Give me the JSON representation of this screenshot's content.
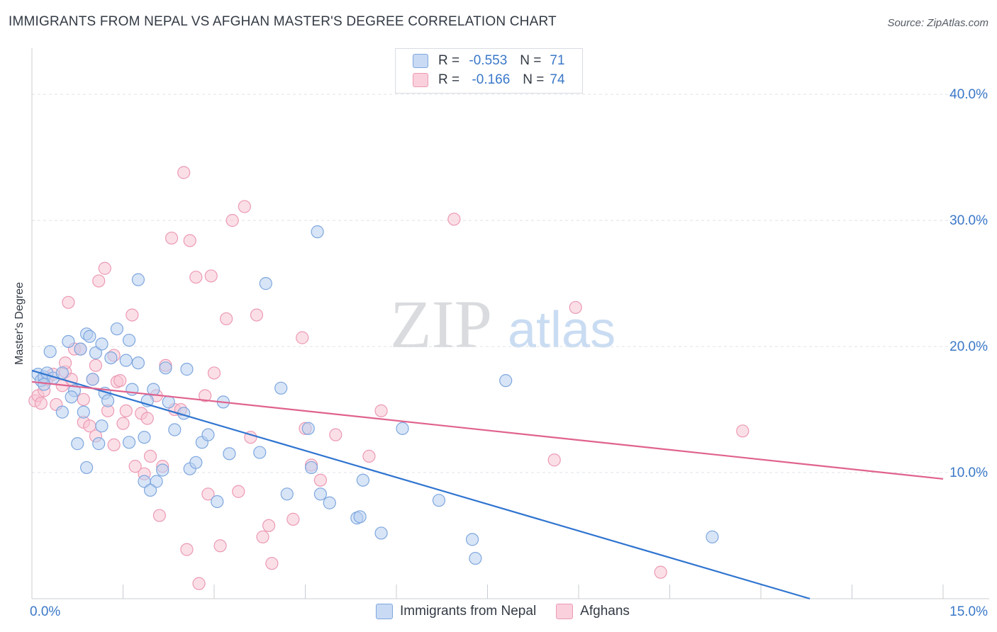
{
  "title": "IMMIGRANTS FROM NEPAL VS AFGHAN MASTER'S DEGREE CORRELATION CHART",
  "source": "Source: ZipAtlas.com",
  "watermark": {
    "zip": "ZIP",
    "atlas": "atlas"
  },
  "colors": {
    "nepal_fill": "#b8d0f0",
    "nepal_stroke": "#7ea7de",
    "nepal_line": "#2f74d0",
    "afghan_fill": "#f8c4d4",
    "afghan_stroke": "#ec9ab4",
    "afghan_line": "#e0628e",
    "tick_label": "#3a78c8",
    "grid": "#dfe3e8"
  },
  "legend_top": {
    "rows": [
      {
        "r_label": "R =",
        "r_value": "-0.553",
        "n_label": "N =",
        "n_value": "71"
      },
      {
        "r_label": "R =",
        "r_value": "-0.166",
        "n_label": "N =",
        "n_value": "74"
      }
    ]
  },
  "chart_data": {
    "type": "scatter",
    "title": "IMMIGRANTS FROM NEPAL VS AFGHAN MASTER'S DEGREE CORRELATION CHART",
    "xlabel": "",
    "ylabel": "Master's Degree",
    "xlim": [
      0,
      15
    ],
    "ylim": [
      0,
      40
    ],
    "x_tick_labels": [
      "0.0%",
      "15.0%"
    ],
    "y_ticks": [
      10,
      20,
      30,
      40
    ],
    "y_tick_labels": [
      "10.0%",
      "20.0%",
      "30.0%",
      "40.0%"
    ],
    "grid": true,
    "legend_position": "bottom",
    "series": [
      {
        "name": "Immigrants from Nepal",
        "trend": [
          [
            0,
            18.1
          ],
          [
            15,
            -3.1
          ]
        ],
        "points": [
          [
            0.1,
            17.8
          ],
          [
            0.15,
            17.3
          ],
          [
            0.2,
            17.6
          ],
          [
            0.25,
            17.9
          ],
          [
            0.35,
            17.5
          ],
          [
            0.5,
            17.9
          ],
          [
            0.3,
            19.6
          ],
          [
            0.6,
            20.4
          ],
          [
            0.7,
            16.5
          ],
          [
            0.65,
            16.0
          ],
          [
            0.8,
            19.8
          ],
          [
            0.9,
            21.0
          ],
          [
            0.95,
            20.8
          ],
          [
            0.5,
            14.8
          ],
          [
            0.85,
            14.8
          ],
          [
            1.05,
            19.5
          ],
          [
            1.0,
            17.4
          ],
          [
            1.15,
            20.2
          ],
          [
            1.2,
            16.3
          ],
          [
            1.3,
            19.1
          ],
          [
            1.4,
            21.4
          ],
          [
            1.25,
            15.7
          ],
          [
            1.55,
            18.9
          ],
          [
            1.6,
            20.5
          ],
          [
            1.75,
            25.3
          ],
          [
            1.65,
            16.6
          ],
          [
            1.85,
            9.3
          ],
          [
            1.9,
            15.7
          ],
          [
            2.05,
            9.3
          ],
          [
            2.0,
            16.6
          ],
          [
            2.2,
            18.3
          ],
          [
            2.35,
            13.4
          ],
          [
            2.5,
            14.7
          ],
          [
            2.55,
            18.2
          ],
          [
            2.6,
            10.3
          ],
          [
            2.7,
            10.8
          ],
          [
            2.8,
            12.4
          ],
          [
            2.9,
            13.0
          ],
          [
            3.05,
            7.7
          ],
          [
            3.15,
            15.6
          ],
          [
            3.25,
            11.5
          ],
          [
            3.85,
            25.0
          ],
          [
            3.75,
            11.6
          ],
          [
            4.1,
            16.7
          ],
          [
            4.2,
            8.3
          ],
          [
            4.55,
            13.5
          ],
          [
            4.6,
            10.4
          ],
          [
            4.75,
            8.3
          ],
          [
            4.7,
            29.1
          ],
          [
            4.9,
            7.6
          ],
          [
            5.35,
            6.4
          ],
          [
            5.4,
            6.5
          ],
          [
            5.45,
            9.4
          ],
          [
            5.75,
            5.2
          ],
          [
            6.1,
            13.5
          ],
          [
            6.7,
            7.8
          ],
          [
            7.25,
            4.7
          ],
          [
            7.3,
            3.2
          ],
          [
            7.8,
            17.3
          ],
          [
            11.2,
            4.9
          ],
          [
            0.2,
            17.0
          ],
          [
            0.9,
            10.4
          ],
          [
            1.15,
            13.7
          ],
          [
            1.1,
            12.3
          ],
          [
            1.6,
            12.4
          ],
          [
            1.85,
            12.8
          ],
          [
            1.95,
            8.6
          ],
          [
            2.25,
            15.6
          ],
          [
            1.75,
            18.7
          ],
          [
            2.15,
            10.2
          ],
          [
            0.75,
            12.3
          ]
        ]
      },
      {
        "name": "Afghans",
        "trend": [
          [
            0,
            17.2
          ],
          [
            15,
            9.5
          ]
        ],
        "points": [
          [
            0.05,
            15.7
          ],
          [
            0.1,
            16.1
          ],
          [
            0.15,
            15.5
          ],
          [
            0.2,
            16.5
          ],
          [
            0.25,
            17.4
          ],
          [
            0.4,
            15.4
          ],
          [
            0.5,
            16.9
          ],
          [
            0.55,
            18.0
          ],
          [
            0.55,
            18.7
          ],
          [
            0.6,
            23.5
          ],
          [
            0.7,
            19.8
          ],
          [
            0.8,
            19.8
          ],
          [
            0.85,
            15.8
          ],
          [
            0.85,
            14.0
          ],
          [
            0.95,
            13.7
          ],
          [
            1.0,
            17.4
          ],
          [
            1.05,
            12.9
          ],
          [
            1.05,
            18.5
          ],
          [
            1.1,
            25.2
          ],
          [
            1.2,
            26.2
          ],
          [
            1.25,
            14.9
          ],
          [
            1.35,
            12.2
          ],
          [
            1.35,
            19.3
          ],
          [
            1.4,
            17.2
          ],
          [
            1.5,
            13.9
          ],
          [
            1.55,
            14.9
          ],
          [
            1.65,
            22.5
          ],
          [
            1.7,
            10.5
          ],
          [
            1.8,
            14.7
          ],
          [
            1.85,
            9.9
          ],
          [
            1.95,
            11.3
          ],
          [
            2.05,
            16.1
          ],
          [
            2.1,
            6.6
          ],
          [
            2.15,
            10.5
          ],
          [
            2.2,
            18.5
          ],
          [
            2.3,
            28.6
          ],
          [
            2.35,
            15.0
          ],
          [
            2.45,
            15.0
          ],
          [
            2.5,
            33.8
          ],
          [
            2.6,
            28.4
          ],
          [
            2.7,
            25.5
          ],
          [
            2.75,
            1.2
          ],
          [
            2.85,
            16.1
          ],
          [
            2.9,
            8.3
          ],
          [
            2.95,
            25.6
          ],
          [
            3.0,
            17.9
          ],
          [
            3.1,
            4.2
          ],
          [
            3.2,
            22.2
          ],
          [
            3.3,
            30.0
          ],
          [
            3.4,
            8.5
          ],
          [
            3.5,
            31.1
          ],
          [
            3.6,
            12.8
          ],
          [
            3.7,
            22.5
          ],
          [
            3.8,
            4.9
          ],
          [
            3.9,
            5.8
          ],
          [
            3.95,
            2.8
          ],
          [
            4.3,
            6.3
          ],
          [
            4.45,
            20.7
          ],
          [
            4.5,
            13.5
          ],
          [
            4.6,
            10.6
          ],
          [
            4.75,
            9.4
          ],
          [
            5.0,
            13.0
          ],
          [
            5.55,
            11.3
          ],
          [
            5.75,
            14.9
          ],
          [
            6.95,
            30.1
          ],
          [
            8.6,
            11.0
          ],
          [
            8.95,
            23.1
          ],
          [
            10.35,
            2.1
          ],
          [
            11.7,
            13.3
          ],
          [
            0.35,
            17.8
          ],
          [
            1.9,
            14.3
          ],
          [
            2.55,
            3.9
          ],
          [
            0.65,
            17.4
          ],
          [
            1.45,
            17.3
          ]
        ]
      }
    ]
  }
}
